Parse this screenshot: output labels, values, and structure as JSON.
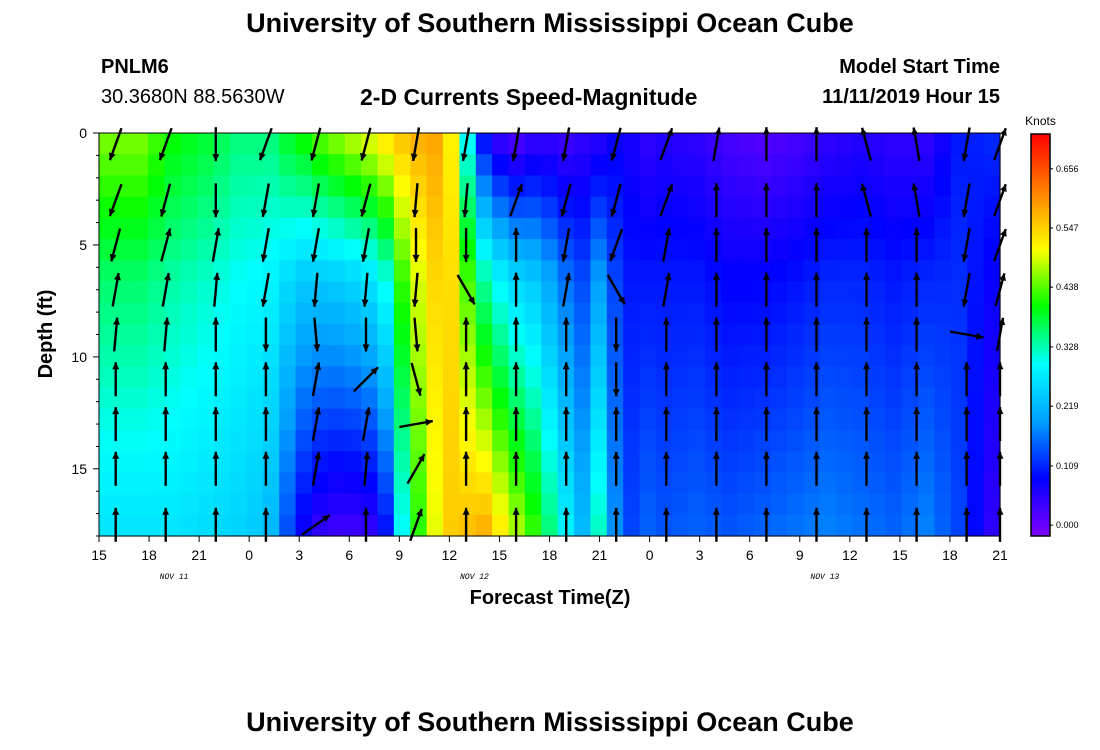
{
  "header": {
    "title": "University of Southern Mississippi Ocean Cube",
    "station": "PNLM6",
    "coords": "30.3680N 88.5630W",
    "subtitle": "2-D Currents Speed-Magnitude",
    "model_start_label": "Model Start Time",
    "model_start_value": "11/11/2019 Hour 15"
  },
  "footer": {
    "title": "University of Southern Mississippi Ocean Cube"
  },
  "chart_data": {
    "type": "heatmap",
    "title": "2-D Currents Speed-Magnitude",
    "xlabel": "Forecast Time(Z)",
    "ylabel": "Depth (ft)",
    "x_tick_labels": [
      "15",
      "18",
      "21",
      "0",
      "3",
      "6",
      "9",
      "12",
      "15",
      "18",
      "21",
      "0",
      "3",
      "6",
      "9",
      "12",
      "15",
      "18",
      "21"
    ],
    "x_date_labels": [
      {
        "text": "NOV 11",
        "at_tick": 1
      },
      {
        "text": "NOV 12",
        "at_tick": 7
      },
      {
        "text": "NOV 13",
        "at_tick": 14
      }
    ],
    "y_ticks": [
      0,
      5,
      10,
      15
    ],
    "ylim": [
      0,
      18
    ],
    "y_inverted": true,
    "colorbar": {
      "unit": "Knots",
      "ticks": [
        0.0,
        0.109,
        0.219,
        0.328,
        0.438,
        0.547,
        0.656
      ],
      "tick_labels": [
        "0.000",
        "0.109",
        "0.219",
        "0.328",
        "0.438",
        "0.547",
        "0.656"
      ],
      "range": [
        -0.02,
        0.72
      ],
      "colors": [
        "#8000ff",
        "#0000ff",
        "#00a0ff",
        "#00ffff",
        "#00ff00",
        "#ffff00",
        "#ff8000",
        "#ff0000"
      ]
    },
    "hours": [
      0,
      1,
      2,
      3,
      4,
      5,
      6,
      7,
      8,
      9,
      10,
      11,
      12,
      13,
      14,
      15,
      16,
      17,
      18,
      19,
      20,
      21,
      22,
      23,
      24,
      25,
      26,
      27,
      28,
      29,
      30,
      31,
      32,
      33,
      34,
      35,
      36,
      37,
      38,
      39,
      40,
      41,
      42,
      43,
      44,
      45,
      46,
      47,
      48,
      49,
      50,
      51,
      52,
      53,
      54
    ],
    "depth_layers_ft": [
      0,
      1,
      2,
      3,
      4,
      5,
      6,
      7,
      8,
      9,
      10,
      11,
      12,
      13,
      14,
      15,
      16,
      17,
      18
    ],
    "speed_profiles": [
      {
        "hour": 0,
        "surface": 0.45,
        "bottom": 0.27
      },
      {
        "hour": 2,
        "surface": 0.45,
        "bottom": 0.27
      },
      {
        "hour": 4,
        "surface": 0.4,
        "bottom": 0.27
      },
      {
        "hour": 6,
        "surface": 0.38,
        "bottom": 0.26
      },
      {
        "hour": 8,
        "surface": 0.35,
        "bottom": 0.25
      },
      {
        "hour": 9,
        "surface": 0.35,
        "bottom": 0.24
      },
      {
        "hour": 10,
        "surface": 0.35,
        "bottom": 0.22
      },
      {
        "hour": 11,
        "surface": 0.38,
        "bottom": 0.14
      },
      {
        "hour": 12,
        "surface": 0.4,
        "bottom": 0.08
      },
      {
        "hour": 13,
        "surface": 0.43,
        "bottom": 0.05
      },
      {
        "hour": 14,
        "surface": 0.45,
        "bottom": 0.04
      },
      {
        "hour": 15,
        "surface": 0.47,
        "bottom": 0.04
      },
      {
        "hour": 16,
        "surface": 0.49,
        "bottom": 0.05
      },
      {
        "hour": 17,
        "surface": 0.52,
        "bottom": 0.1
      },
      {
        "hour": 18,
        "surface": 0.55,
        "bottom": 0.3
      },
      {
        "hour": 19,
        "surface": 0.57,
        "bottom": 0.42
      },
      {
        "hour": 20,
        "surface": 0.58,
        "bottom": 0.5
      },
      {
        "hour": 21,
        "surface": 0.52,
        "bottom": 0.55
      },
      {
        "hour": 22,
        "surface": 0.3,
        "bottom": 0.56
      },
      {
        "hour": 23,
        "surface": 0.1,
        "bottom": 0.57
      },
      {
        "hour": 24,
        "surface": 0.05,
        "bottom": 0.52
      },
      {
        "hour": 25,
        "surface": 0.03,
        "bottom": 0.47
      },
      {
        "hour": 26,
        "surface": 0.05,
        "bottom": 0.42
      },
      {
        "hour": 27,
        "surface": 0.05,
        "bottom": 0.35
      },
      {
        "hour": 28,
        "surface": 0.04,
        "bottom": 0.28
      },
      {
        "hour": 29,
        "surface": 0.05,
        "bottom": 0.22
      },
      {
        "hour": 30,
        "surface": 0.06,
        "bottom": 0.32
      },
      {
        "hour": 31,
        "surface": 0.08,
        "bottom": 0.18
      },
      {
        "hour": 32,
        "surface": 0.07,
        "bottom": 0.13
      },
      {
        "hour": 33,
        "surface": 0.05,
        "bottom": 0.15
      },
      {
        "hour": 34,
        "surface": 0.06,
        "bottom": 0.14
      },
      {
        "hour": 36,
        "surface": 0.05,
        "bottom": 0.15
      },
      {
        "hour": 38,
        "surface": 0.03,
        "bottom": 0.14
      },
      {
        "hour": 40,
        "surface": 0.02,
        "bottom": 0.15
      },
      {
        "hour": 42,
        "surface": 0.03,
        "bottom": 0.16
      },
      {
        "hour": 44,
        "surface": 0.05,
        "bottom": 0.17
      },
      {
        "hour": 46,
        "surface": 0.06,
        "bottom": 0.16
      },
      {
        "hour": 48,
        "surface": 0.05,
        "bottom": 0.15
      },
      {
        "hour": 50,
        "surface": 0.05,
        "bottom": 0.17
      },
      {
        "hour": 52,
        "surface": 0.1,
        "bottom": 0.13
      },
      {
        "hour": 54,
        "surface": 0.11,
        "bottom": 0.05
      }
    ],
    "vector_times_hours": [
      1,
      4,
      7,
      10,
      13,
      16,
      19,
      22,
      25,
      28,
      31,
      34,
      37,
      40,
      43,
      46,
      49,
      52,
      54
    ],
    "vector_depths_ft": [
      0.5,
      3,
      5,
      7,
      9,
      11,
      13,
      15,
      17.5
    ],
    "vector_directions_deg": [
      [
        200,
        200,
        180,
        200,
        195,
        195,
        190,
        190,
        190,
        190,
        195,
        20,
        10,
        0,
        0,
        345,
        350,
        190,
        20
      ],
      [
        200,
        195,
        180,
        190,
        190,
        195,
        185,
        185,
        20,
        195,
        195,
        20,
        0,
        0,
        0,
        345,
        350,
        190,
        20
      ],
      [
        195,
        15,
        10,
        190,
        190,
        190,
        180,
        180,
        0,
        190,
        200,
        10,
        0,
        0,
        0,
        0,
        0,
        190,
        20
      ],
      [
        10,
        10,
        5,
        190,
        185,
        185,
        185,
        150,
        0,
        10,
        150,
        10,
        0,
        0,
        0,
        0,
        0,
        190,
        15
      ],
      [
        5,
        5,
        0,
        180,
        175,
        180,
        175,
        0,
        0,
        0,
        180,
        0,
        0,
        0,
        0,
        0,
        0,
        100,
        10
      ],
      [
        0,
        0,
        0,
        0,
        10,
        45,
        165,
        0,
        0,
        0,
        180,
        0,
        0,
        0,
        0,
        0,
        0,
        0,
        0
      ],
      [
        0,
        0,
        0,
        0,
        10,
        10,
        80,
        0,
        0,
        0,
        0,
        0,
        0,
        0,
        0,
        0,
        0,
        0,
        0
      ],
      [
        0,
        0,
        0,
        0,
        10,
        5,
        30,
        0,
        0,
        0,
        0,
        0,
        0,
        0,
        0,
        0,
        0,
        0,
        0
      ],
      [
        0,
        0,
        0,
        0,
        55,
        0,
        20,
        0,
        0,
        0,
        0,
        0,
        0,
        0,
        0,
        0,
        0,
        0,
        0
      ]
    ]
  }
}
